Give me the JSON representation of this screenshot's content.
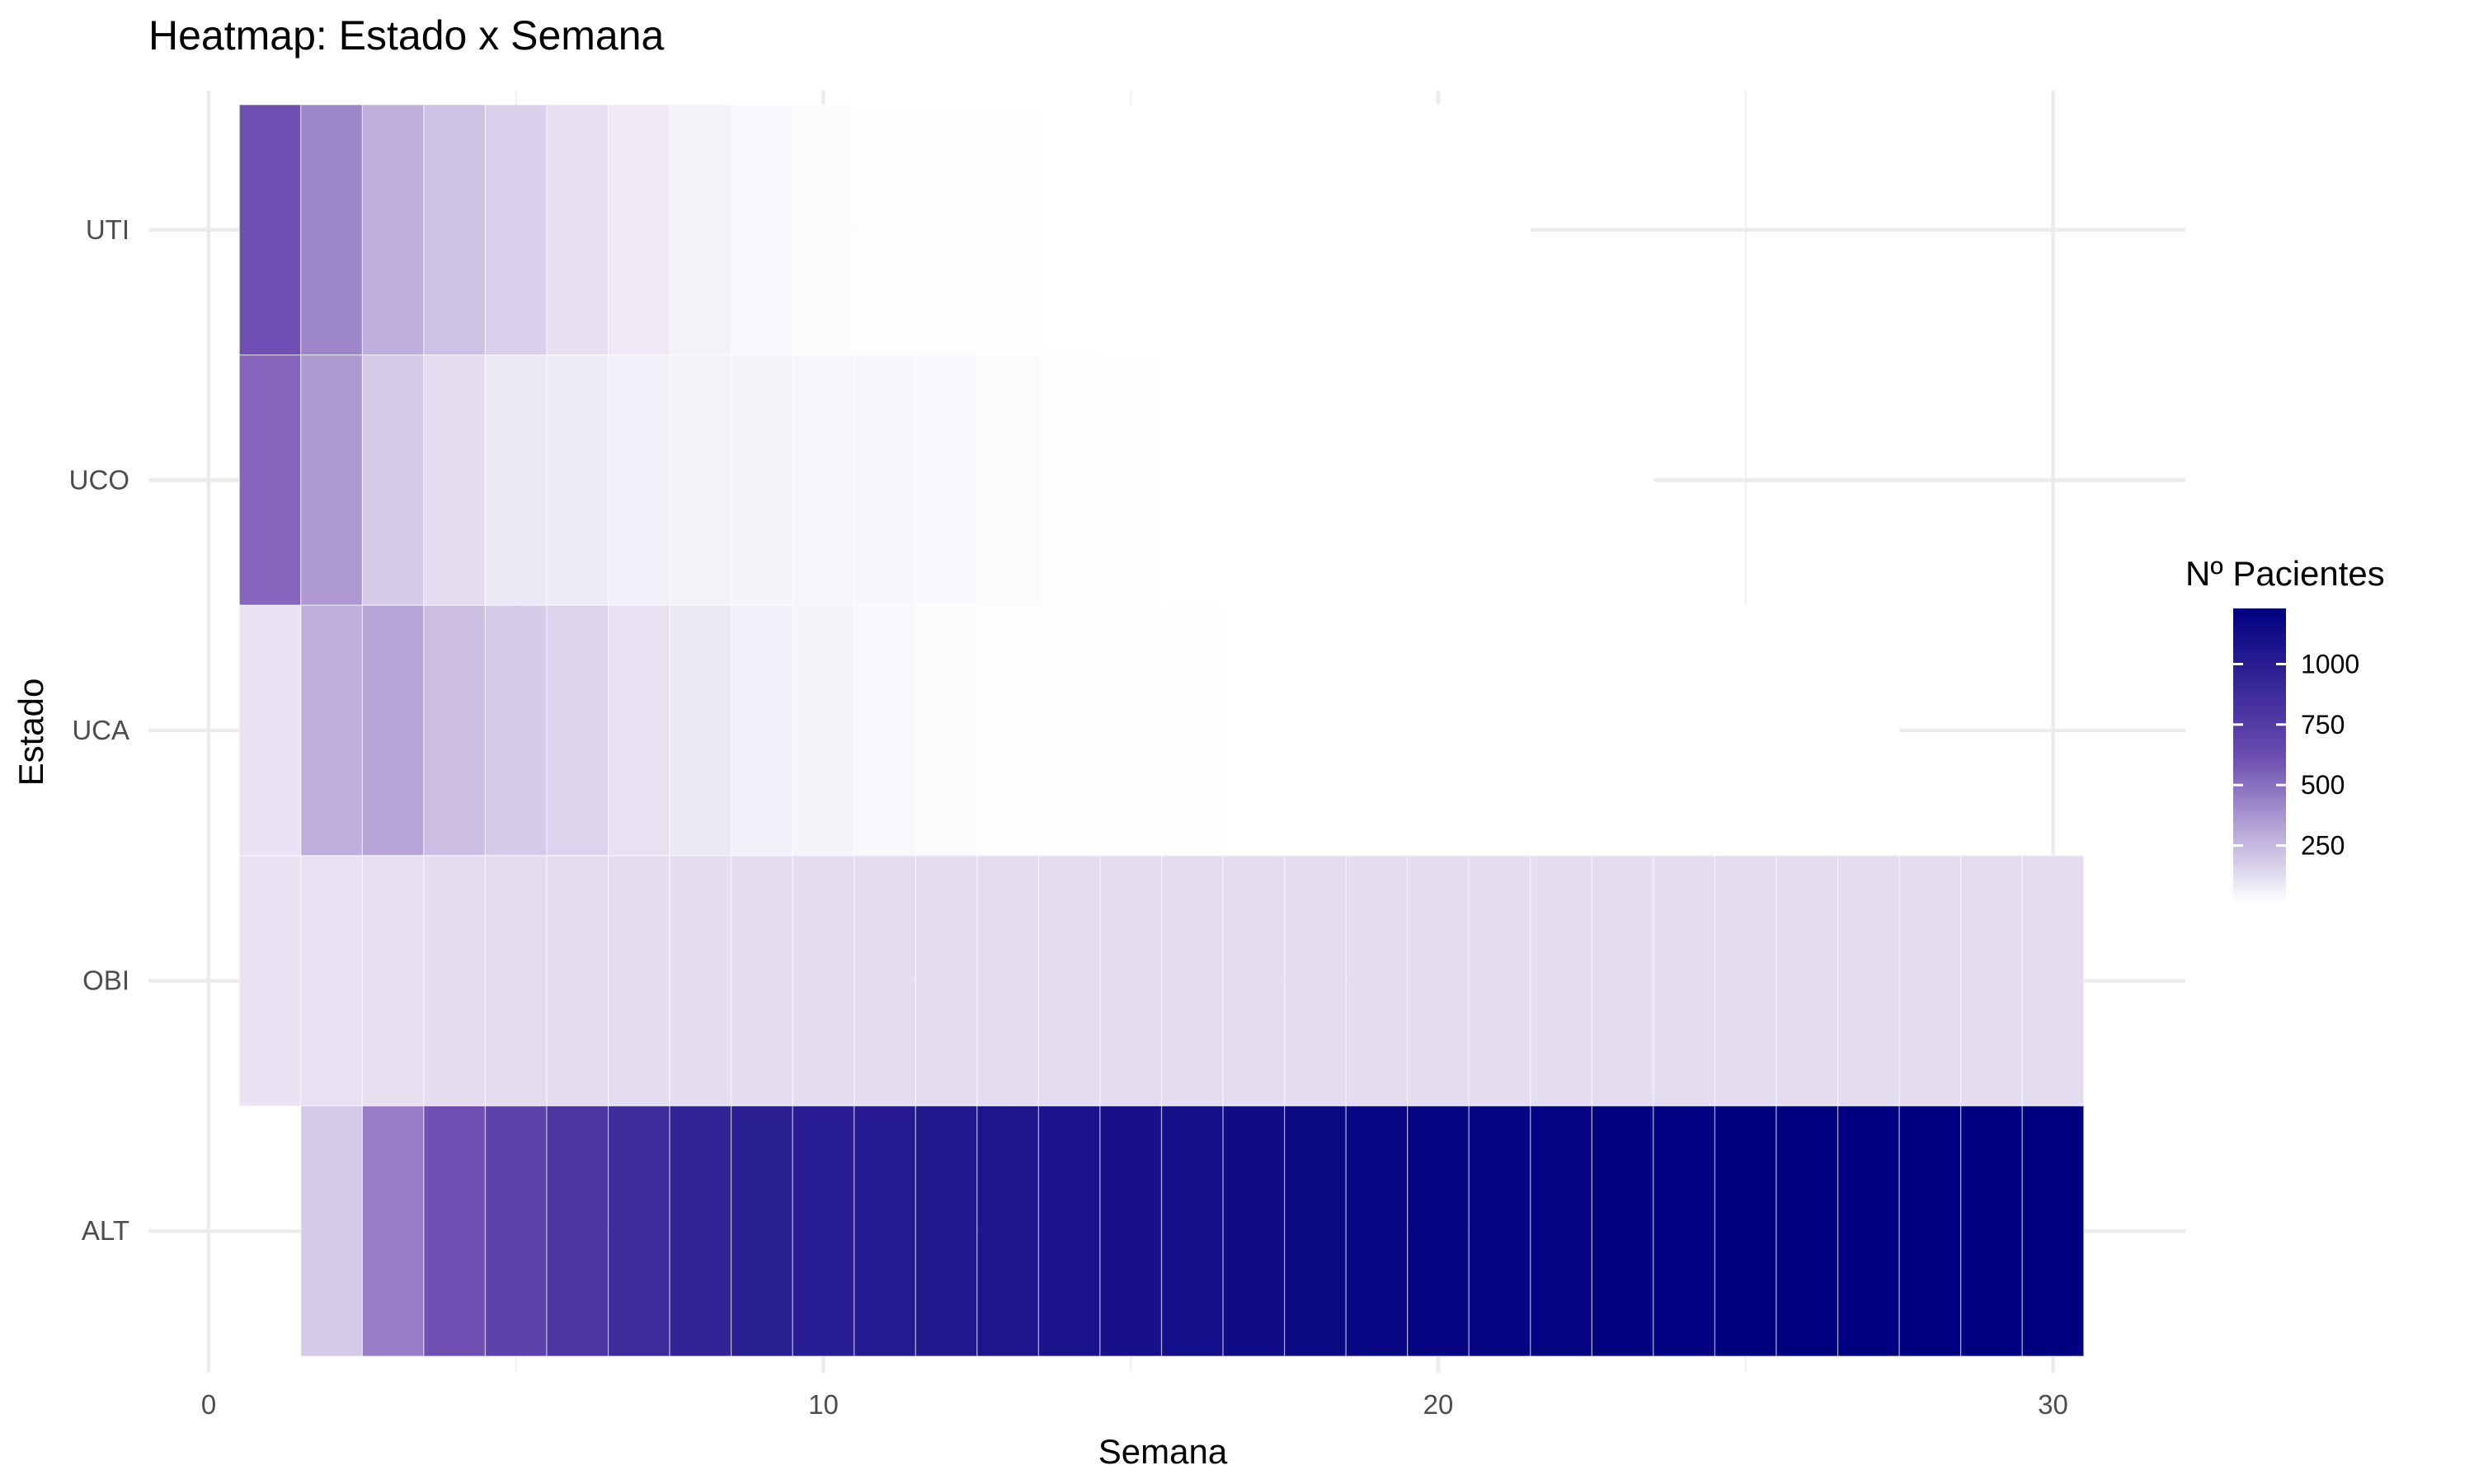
{
  "chart_data": {
    "type": "heatmap",
    "title": "Heatmap: Estado x Semana",
    "xlabel": "Semana",
    "ylabel": "Estado",
    "xlim": [
      0,
      32
    ],
    "x_ticks": [
      0,
      10,
      20,
      30
    ],
    "x_minor_ticks": [
      5,
      15,
      25
    ],
    "categories": [
      "UTI",
      "UCO",
      "UCA",
      "OBI",
      "ALT"
    ],
    "legend": {
      "title": "Nº Pacientes",
      "position": "right",
      "min": 10,
      "max": 1230,
      "ticks": [
        250,
        500,
        750,
        1000
      ],
      "color_low": "#ffffff",
      "color_high": "#000080"
    },
    "grid": true,
    "series": [
      {
        "name": "UTI",
        "x": [
          1,
          2,
          3,
          4,
          5,
          6,
          7,
          8,
          9,
          10,
          11,
          12,
          13,
          14,
          15,
          16,
          17,
          18,
          19,
          20,
          21
        ],
        "values": [
          600,
          400,
          270,
          210,
          160,
          110,
          80,
          55,
          35,
          22,
          18,
          15,
          12,
          10,
          10,
          10,
          10,
          10,
          8,
          6,
          5
        ]
      },
      {
        "name": "UCO",
        "x": [
          1,
          2,
          3,
          4,
          5,
          6,
          7,
          8,
          9,
          10,
          11,
          12,
          13,
          14,
          15,
          16,
          17,
          18,
          19,
          20,
          21,
          22,
          23
        ],
        "values": [
          500,
          340,
          180,
          120,
          85,
          70,
          62,
          55,
          48,
          42,
          38,
          32,
          25,
          20,
          14,
          10,
          9,
          8,
          7,
          6,
          5,
          6,
          4
        ]
      },
      {
        "name": "UCA",
        "x": [
          1,
          2,
          3,
          4,
          5,
          6,
          7,
          8,
          9,
          10,
          11,
          12,
          13,
          14,
          15,
          16,
          17,
          18,
          19,
          20,
          21,
          22,
          23,
          24,
          25,
          26,
          27
        ],
        "values": [
          100,
          270,
          300,
          220,
          180,
          150,
          105,
          85,
          60,
          45,
          35,
          25,
          20,
          18,
          15,
          12,
          10,
          8,
          8,
          6,
          5,
          5,
          5,
          4,
          4,
          4,
          4
        ]
      },
      {
        "name": "OBI",
        "x": [
          1,
          2,
          3,
          4,
          5,
          6,
          7,
          8,
          9,
          10,
          11,
          12,
          13,
          14,
          15,
          16,
          17,
          18,
          19,
          20,
          21,
          22,
          23,
          24,
          25,
          26,
          27,
          28,
          29,
          30
        ],
        "values": [
          100,
          105,
          110,
          115,
          118,
          120,
          120,
          120,
          120,
          120,
          120,
          120,
          120,
          120,
          120,
          120,
          120,
          120,
          120,
          120,
          120,
          120,
          120,
          120,
          120,
          120,
          120,
          120,
          120,
          120
        ]
      },
      {
        "name": "ALT",
        "x": [
          2,
          3,
          4,
          5,
          6,
          7,
          8,
          9,
          10,
          11,
          12,
          13,
          14,
          15,
          16,
          17,
          18,
          19,
          20,
          21,
          22,
          23,
          24,
          25,
          26,
          27,
          28,
          29,
          30
        ],
        "values": [
          180,
          420,
          600,
          700,
          800,
          880,
          940,
          990,
          1000,
          1020,
          1040,
          1060,
          1080,
          1100,
          1120,
          1140,
          1160,
          1180,
          1190,
          1200,
          1210,
          1215,
          1220,
          1225,
          1228,
          1229,
          1230,
          1230,
          1230
        ]
      }
    ]
  }
}
